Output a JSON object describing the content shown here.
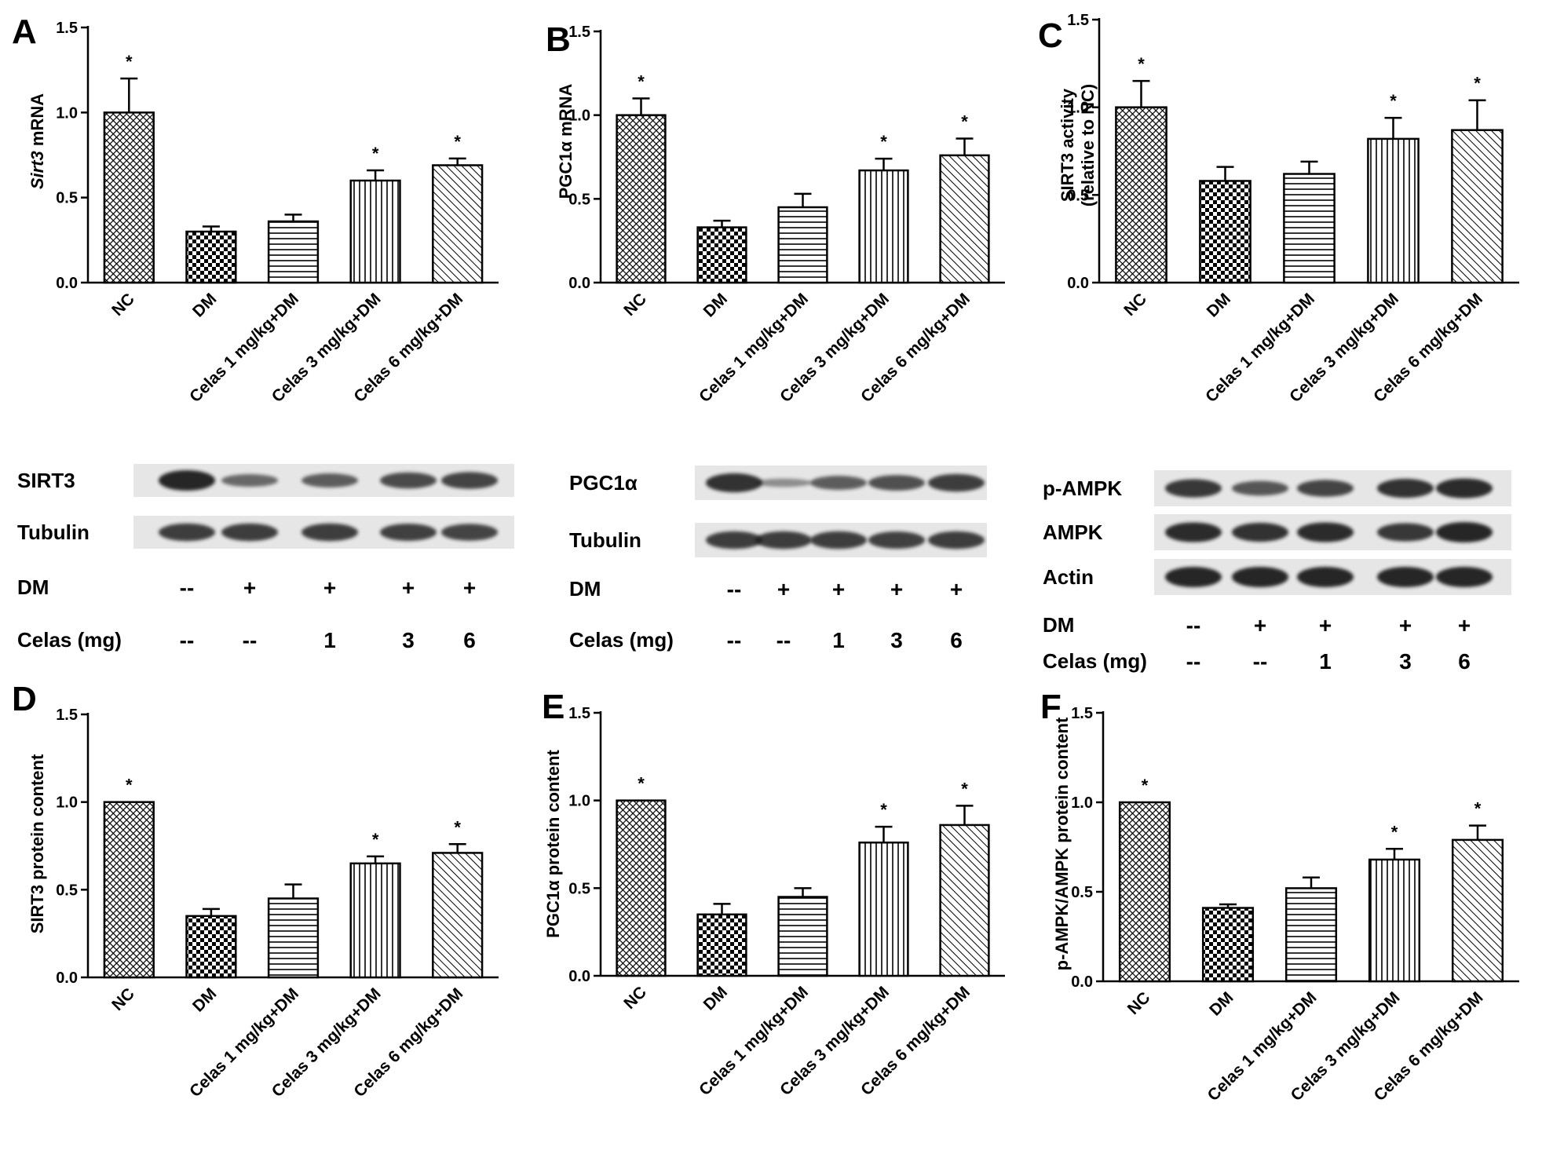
{
  "figure": {
    "categories": [
      "NC",
      "DM",
      "Celas 1 mg/kg+DM",
      "Celas 3 mg/kg+DM",
      "Celas 6 mg/kg+DM"
    ],
    "bar_patterns": [
      "crosshatch",
      "checker",
      "horizontal",
      "vertical",
      "diagonal"
    ],
    "colors": {
      "ink": "#000000",
      "background": "#ffffff",
      "blot_band": "#1a1a1a",
      "blot_strip": "#e6e6e6"
    }
  },
  "chart_data": [
    {
      "panel": "A",
      "type": "bar",
      "ylabel_parts": [
        {
          "text": "Sirt3",
          "italic": true
        },
        {
          "text": " mRNA",
          "italic": false
        }
      ],
      "ylim": [
        0,
        1.5
      ],
      "yticks": [
        "0.0",
        "0.5",
        "1.0",
        "1.5"
      ],
      "categories": [
        "NC",
        "DM",
        "Celas 1 mg/kg+DM",
        "Celas 3 mg/kg+DM",
        "Celas 6 mg/kg+DM"
      ],
      "values": [
        1.0,
        0.3,
        0.36,
        0.6,
        0.69
      ],
      "errors": [
        0.2,
        0.03,
        0.04,
        0.06,
        0.04
      ],
      "stars": [
        "*",
        "",
        "",
        "*",
        "*"
      ]
    },
    {
      "panel": "B",
      "type": "bar",
      "ylabel_parts": [
        {
          "text": "PGC1α mRNA",
          "italic": false
        }
      ],
      "ylim": [
        0,
        1.5
      ],
      "yticks": [
        "0.0",
        "0.5",
        "1.0",
        "1.5"
      ],
      "categories": [
        "NC",
        "DM",
        "Celas 1 mg/kg+DM",
        "Celas 3 mg/kg+DM",
        "Celas 6 mg/kg+DM"
      ],
      "values": [
        1.0,
        0.33,
        0.45,
        0.67,
        0.76
      ],
      "errors": [
        0.1,
        0.04,
        0.08,
        0.07,
        0.1
      ],
      "stars": [
        "*",
        "",
        "",
        "*",
        "*"
      ]
    },
    {
      "panel": "C",
      "type": "bar",
      "ylabel_lines": [
        "SIRT3 activity",
        "(relative to NC)"
      ],
      "ylim": [
        0,
        1.5
      ],
      "yticks": [
        "0.0",
        "0.5",
        "1.0",
        "1.5"
      ],
      "categories": [
        "NC",
        "DM",
        "Celas 1 mg/kg+DM",
        "Celas 3 mg/kg+DM",
        "Celas 6 mg/kg+DM"
      ],
      "values": [
        1.0,
        0.58,
        0.62,
        0.82,
        0.87
      ],
      "errors": [
        0.15,
        0.08,
        0.07,
        0.12,
        0.17
      ],
      "stars": [
        "*",
        "",
        "",
        "*",
        "*"
      ]
    },
    {
      "panel": "D",
      "type": "bar",
      "ylabel_parts": [
        {
          "text": "SIRT3 protein content",
          "italic": false
        }
      ],
      "ylim": [
        0,
        1.5
      ],
      "yticks": [
        "0.0",
        "0.5",
        "1.0",
        "1.5"
      ],
      "categories": [
        "NC",
        "DM",
        "Celas 1 mg/kg+DM",
        "Celas 3 mg/kg+DM",
        "Celas 6 mg/kg+DM"
      ],
      "values": [
        1.0,
        0.35,
        0.45,
        0.65,
        0.71
      ],
      "errors": [
        0,
        0.04,
        0.08,
        0.04,
        0.05
      ],
      "stars": [
        "*",
        "",
        "",
        "*",
        "*"
      ]
    },
    {
      "panel": "E",
      "type": "bar",
      "ylabel_parts": [
        {
          "text": "PGC1α protein content",
          "italic": false
        }
      ],
      "ylim": [
        0,
        1.5
      ],
      "yticks": [
        "0.0",
        "0.5",
        "1.0",
        "1.5"
      ],
      "categories": [
        "NC",
        "DM",
        "Celas 1 mg/kg+DM",
        "Celas 3 mg/kg+DM",
        "Celas 6 mg/kg+DM"
      ],
      "values": [
        1.0,
        0.35,
        0.45,
        0.76,
        0.86
      ],
      "errors": [
        0,
        0.06,
        0.05,
        0.09,
        0.11
      ],
      "stars": [
        "*",
        "",
        "",
        "*",
        "*"
      ]
    },
    {
      "panel": "F",
      "type": "bar",
      "ylabel_parts": [
        {
          "text": "p-AMPK/AMPK protein content",
          "italic": false
        }
      ],
      "ylim": [
        0,
        1.5
      ],
      "yticks": [
        "0.0",
        "0.5",
        "1.0",
        "1.5"
      ],
      "categories": [
        "NC",
        "DM",
        "Celas 1 mg/kg+DM",
        "Celas 3 mg/kg+DM",
        "Celas 6 mg/kg+DM"
      ],
      "values": [
        1.0,
        0.41,
        0.52,
        0.68,
        0.79
      ],
      "errors": [
        0,
        0.02,
        0.06,
        0.06,
        0.08
      ],
      "stars": [
        "*",
        "",
        "",
        "*",
        "*"
      ]
    }
  ],
  "blots": [
    {
      "id": "sirt3-blot",
      "bands": [
        {
          "label": "SIRT3",
          "intensity": [
            1.0,
            0.45,
            0.55,
            0.7,
            0.75
          ]
        },
        {
          "label": "Tubulin",
          "intensity": [
            0.8,
            0.8,
            0.8,
            0.78,
            0.75
          ]
        }
      ],
      "treatments": [
        {
          "label": "DM",
          "values": [
            "--",
            "+",
            "+",
            "+",
            "+"
          ]
        },
        {
          "label": "Celas (mg)",
          "values": [
            "--",
            "--",
            "1",
            "3",
            "6"
          ]
        }
      ]
    },
    {
      "id": "pgc1a-blot",
      "bands": [
        {
          "label": "PGC1α",
          "intensity": [
            0.9,
            0.15,
            0.55,
            0.65,
            0.8
          ]
        },
        {
          "label": "Tubulin",
          "intensity": [
            0.8,
            0.8,
            0.8,
            0.78,
            0.8
          ]
        }
      ],
      "treatments": [
        {
          "label": "DM",
          "values": [
            "--",
            "+",
            "+",
            "+",
            "+"
          ]
        },
        {
          "label": "Celas (mg)",
          "values": [
            "--",
            "--",
            "1",
            "3",
            "6"
          ]
        }
      ]
    },
    {
      "id": "ampk-blot",
      "bands": [
        {
          "label": "p-AMPK",
          "intensity": [
            0.85,
            0.6,
            0.75,
            0.9,
            0.95
          ]
        },
        {
          "label": "AMPK",
          "intensity": [
            0.95,
            0.9,
            0.95,
            0.85,
            1.0
          ]
        },
        {
          "label": "Actin",
          "intensity": [
            1.0,
            1.0,
            1.0,
            1.0,
            1.0
          ]
        }
      ],
      "treatments": [
        {
          "label": "DM",
          "values": [
            "--",
            "+",
            "+",
            "+",
            "+"
          ]
        },
        {
          "label": "Celas (mg)",
          "values": [
            "--",
            "--",
            "1",
            "3",
            "6"
          ]
        }
      ]
    }
  ]
}
